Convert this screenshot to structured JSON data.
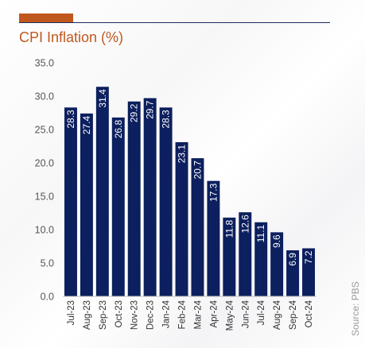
{
  "title": "CPI Inflation (%)",
  "source": "Source: PBS",
  "colors": {
    "accent": "#c0581d",
    "bar": "#0c1f5e",
    "rule": "#1b2a5c"
  },
  "chart_data": {
    "type": "bar",
    "title": "CPI Inflation (%)",
    "xlabel": "",
    "ylabel": "",
    "ylim": [
      0,
      35
    ],
    "yticks": [
      "0.0",
      "5.0",
      "10.0",
      "15.0",
      "20.0",
      "25.0",
      "30.0",
      "35.0"
    ],
    "grid": false,
    "legend": "none",
    "categories": [
      "Jul-23",
      "Aug-23",
      "Sep-23",
      "Oct-23",
      "Nov-23",
      "Dec-23",
      "Jan-24",
      "Feb-24",
      "Mar-24",
      "Apr-24",
      "May-24",
      "Jun-24",
      "Jul-24",
      "Aug-24",
      "Sep-24",
      "Oct-24"
    ],
    "values": [
      28.3,
      27.4,
      31.4,
      26.8,
      29.2,
      29.7,
      28.3,
      23.1,
      20.7,
      17.3,
      11.8,
      12.6,
      11.1,
      9.6,
      6.9,
      7.2
    ],
    "labels": [
      "28.3",
      "27.4",
      "31.4",
      "26.8",
      "29.2",
      "29.7",
      "28.3",
      "23.1",
      "20.7",
      "17.3",
      "11.8",
      "12.6",
      "11.1",
      "9.6",
      "6.9",
      "7.2"
    ]
  }
}
